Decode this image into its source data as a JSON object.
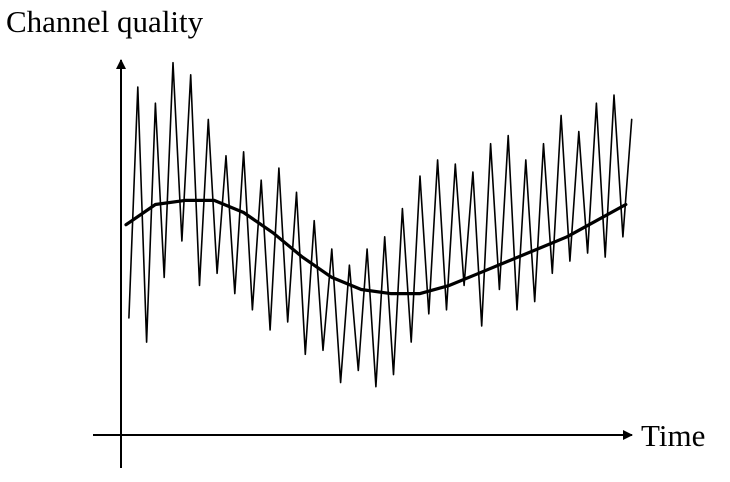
{
  "chart_data": {
    "type": "line",
    "xlabel": "Time",
    "ylabel": "Channel quality",
    "grid": false,
    "legend": "none",
    "colors": {
      "lines": "#000000",
      "background": "#ffffff"
    },
    "series": [
      {
        "x": [
          0.2,
          0.8,
          1.4,
          2.0,
          2.6,
          3.2,
          3.8,
          4.4,
          5.0,
          5.6,
          6.2,
          6.8,
          7.4,
          8.0,
          8.6,
          9.2,
          9.8,
          10.4,
          11.0,
          11.6,
          12.2,
          12.8,
          13.4,
          14.0,
          14.6,
          15.2,
          15.8,
          16.4,
          17.0,
          17.6,
          18.2,
          18.8,
          19.4,
          20.0,
          20.6,
          21.2,
          21.8,
          22.4,
          23.0,
          23.6,
          24.2,
          24.8,
          25.4,
          26.0,
          26.6,
          27.2,
          27.8,
          28.4,
          29.0,
          29.6,
          30.2,
          30.8,
          31.4,
          32.0,
          32.6,
          33.2,
          33.8,
          34.4
        ],
        "values": [
          2.3,
          8.0,
          1.7,
          7.6,
          3.3,
          8.6,
          4.2,
          8.3,
          3.1,
          7.2,
          3.4,
          6.3,
          2.9,
          6.4,
          2.5,
          5.7,
          2.0,
          6.0,
          2.2,
          5.4,
          1.4,
          4.7,
          1.5,
          4.0,
          0.7,
          3.6,
          1.0,
          4.0,
          0.6,
          4.3,
          0.9,
          5.0,
          1.7,
          5.8,
          2.4,
          6.2,
          2.5,
          6.1,
          3.1,
          5.9,
          2.1,
          6.6,
          3.0,
          6.8,
          2.5,
          6.2,
          2.7,
          6.6,
          3.4,
          7.3,
          3.7,
          6.9,
          3.9,
          7.6,
          3.8,
          7.8,
          4.3,
          7.2
        ]
      },
      {
        "x": [
          0,
          2,
          4,
          6,
          8,
          10,
          12,
          14,
          16,
          18,
          20,
          22,
          24,
          26,
          28,
          30,
          32,
          34
        ],
        "values": [
          4.6,
          5.1,
          5.2,
          5.2,
          4.9,
          4.4,
          3.8,
          3.3,
          3.0,
          2.9,
          2.9,
          3.1,
          3.4,
          3.7,
          4.0,
          4.3,
          4.7,
          5.1
        ]
      }
    ]
  }
}
